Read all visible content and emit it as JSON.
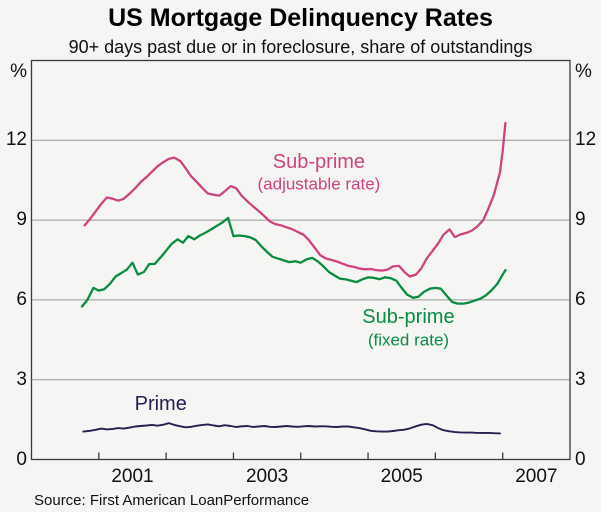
{
  "title": "US Mortgage Delinquency Rates",
  "subtitle": "90+ days past due or in foreclosure, share of outstandings",
  "source": "Source: First American LoanPerformance",
  "y_axis": {
    "unit": "%",
    "ticks": [
      0,
      3,
      6,
      9,
      12
    ],
    "min": 0,
    "max": 15
  },
  "x_axis": {
    "tick_years": [
      2001,
      2002,
      2003,
      2004,
      2005,
      2006,
      2007
    ],
    "label_years": [
      2001,
      2003,
      2005,
      2007
    ],
    "range": [
      2000,
      2008
    ]
  },
  "colors": {
    "background": "#f5f5f3",
    "frame": "#3a3a3a",
    "gridline": "#9a9a9a",
    "subprime_arm": "#ce4380",
    "subprime_fixed": "#0a8c41",
    "prime": "#222150",
    "text": "#111111"
  },
  "chart_data": {
    "type": "line",
    "title": "US Mortgage Delinquency Rates",
    "subtitle": "90+ days past due or in foreclosure, share of outstandings",
    "xlabel": "",
    "ylabel": "%",
    "xlim": [
      2000,
      2008
    ],
    "ylim": [
      0,
      15
    ],
    "grid": "horizontal",
    "legend_position": "inline-annotations",
    "series": [
      {
        "name": "Sub-prime (adjustable rate)",
        "color": "#ce4380",
        "label": {
          "lines": [
            "Sub-prime",
            "(adjustable rate)"
          ],
          "x": 2004.27,
          "y": [
            11.2,
            10.36
          ],
          "font_sizes": [
            20,
            17
          ]
        },
        "points": [
          [
            2000.79,
            8.8
          ],
          [
            2000.87,
            9.05
          ],
          [
            2000.96,
            9.35
          ],
          [
            2001.04,
            9.62
          ],
          [
            2001.12,
            9.85
          ],
          [
            2001.21,
            9.8
          ],
          [
            2001.29,
            9.73
          ],
          [
            2001.37,
            9.8
          ],
          [
            2001.46,
            10.0
          ],
          [
            2001.54,
            10.2
          ],
          [
            2001.62,
            10.42
          ],
          [
            2001.71,
            10.62
          ],
          [
            2001.79,
            10.82
          ],
          [
            2001.87,
            11.02
          ],
          [
            2001.96,
            11.18
          ],
          [
            2002.04,
            11.3
          ],
          [
            2002.12,
            11.35
          ],
          [
            2002.21,
            11.22
          ],
          [
            2002.29,
            10.95
          ],
          [
            2002.37,
            10.65
          ],
          [
            2002.46,
            10.42
          ],
          [
            2002.54,
            10.2
          ],
          [
            2002.62,
            10.0
          ],
          [
            2002.71,
            9.95
          ],
          [
            2002.79,
            9.92
          ],
          [
            2002.87,
            10.08
          ],
          [
            2002.96,
            10.28
          ],
          [
            2003.04,
            10.2
          ],
          [
            2003.12,
            9.92
          ],
          [
            2003.21,
            9.7
          ],
          [
            2003.29,
            9.52
          ],
          [
            2003.37,
            9.35
          ],
          [
            2003.46,
            9.15
          ],
          [
            2003.54,
            8.95
          ],
          [
            2003.62,
            8.85
          ],
          [
            2003.71,
            8.8
          ],
          [
            2003.79,
            8.73
          ],
          [
            2003.87,
            8.66
          ],
          [
            2003.96,
            8.55
          ],
          [
            2004.04,
            8.45
          ],
          [
            2004.12,
            8.25
          ],
          [
            2004.21,
            7.95
          ],
          [
            2004.29,
            7.68
          ],
          [
            2004.37,
            7.56
          ],
          [
            2004.46,
            7.5
          ],
          [
            2004.54,
            7.44
          ],
          [
            2004.62,
            7.36
          ],
          [
            2004.71,
            7.28
          ],
          [
            2004.79,
            7.24
          ],
          [
            2004.87,
            7.18
          ],
          [
            2004.96,
            7.15
          ],
          [
            2005.04,
            7.16
          ],
          [
            2005.12,
            7.12
          ],
          [
            2005.21,
            7.1
          ],
          [
            2005.29,
            7.14
          ],
          [
            2005.37,
            7.26
          ],
          [
            2005.46,
            7.28
          ],
          [
            2005.54,
            7.05
          ],
          [
            2005.62,
            6.88
          ],
          [
            2005.71,
            6.95
          ],
          [
            2005.79,
            7.18
          ],
          [
            2005.87,
            7.55
          ],
          [
            2005.96,
            7.85
          ],
          [
            2006.04,
            8.12
          ],
          [
            2006.12,
            8.45
          ],
          [
            2006.21,
            8.65
          ],
          [
            2006.29,
            8.36
          ],
          [
            2006.37,
            8.46
          ],
          [
            2006.46,
            8.52
          ],
          [
            2006.54,
            8.6
          ],
          [
            2006.62,
            8.75
          ],
          [
            2006.71,
            9.0
          ],
          [
            2006.79,
            9.45
          ],
          [
            2006.87,
            9.95
          ],
          [
            2006.96,
            10.8
          ],
          [
            2007.0,
            11.6
          ],
          [
            2007.04,
            12.65
          ]
        ]
      },
      {
        "name": "Sub-prime (fixed rate)",
        "color": "#0a8c41",
        "label": {
          "lines": [
            "Sub-prime",
            "(fixed rate)"
          ],
          "x": 2005.6,
          "y": [
            5.35,
            4.5
          ],
          "font_sizes": [
            20,
            17
          ]
        },
        "points": [
          [
            2000.75,
            5.75
          ],
          [
            2000.83,
            6.0
          ],
          [
            2000.92,
            6.45
          ],
          [
            2001.0,
            6.35
          ],
          [
            2001.08,
            6.4
          ],
          [
            2001.17,
            6.62
          ],
          [
            2001.25,
            6.88
          ],
          [
            2001.33,
            7.0
          ],
          [
            2001.42,
            7.15
          ],
          [
            2001.5,
            7.4
          ],
          [
            2001.58,
            6.95
          ],
          [
            2001.67,
            7.05
          ],
          [
            2001.75,
            7.35
          ],
          [
            2001.83,
            7.35
          ],
          [
            2001.92,
            7.6
          ],
          [
            2002.0,
            7.85
          ],
          [
            2002.08,
            8.1
          ],
          [
            2002.17,
            8.28
          ],
          [
            2002.25,
            8.15
          ],
          [
            2002.33,
            8.4
          ],
          [
            2002.42,
            8.28
          ],
          [
            2002.5,
            8.42
          ],
          [
            2002.58,
            8.52
          ],
          [
            2002.67,
            8.65
          ],
          [
            2002.75,
            8.78
          ],
          [
            2002.83,
            8.9
          ],
          [
            2002.92,
            9.08
          ],
          [
            2003.0,
            8.4
          ],
          [
            2003.08,
            8.42
          ],
          [
            2003.17,
            8.4
          ],
          [
            2003.25,
            8.35
          ],
          [
            2003.33,
            8.25
          ],
          [
            2003.42,
            8.0
          ],
          [
            2003.5,
            7.8
          ],
          [
            2003.58,
            7.62
          ],
          [
            2003.67,
            7.55
          ],
          [
            2003.75,
            7.48
          ],
          [
            2003.83,
            7.42
          ],
          [
            2003.92,
            7.45
          ],
          [
            2004.0,
            7.4
          ],
          [
            2004.08,
            7.52
          ],
          [
            2004.17,
            7.58
          ],
          [
            2004.25,
            7.45
          ],
          [
            2004.33,
            7.28
          ],
          [
            2004.42,
            7.05
          ],
          [
            2004.5,
            6.92
          ],
          [
            2004.58,
            6.8
          ],
          [
            2004.67,
            6.77
          ],
          [
            2004.75,
            6.72
          ],
          [
            2004.83,
            6.67
          ],
          [
            2004.92,
            6.78
          ],
          [
            2005.0,
            6.85
          ],
          [
            2005.08,
            6.83
          ],
          [
            2005.17,
            6.78
          ],
          [
            2005.25,
            6.85
          ],
          [
            2005.33,
            6.82
          ],
          [
            2005.42,
            6.72
          ],
          [
            2005.5,
            6.45
          ],
          [
            2005.58,
            6.2
          ],
          [
            2005.67,
            6.08
          ],
          [
            2005.75,
            6.12
          ],
          [
            2005.83,
            6.3
          ],
          [
            2005.92,
            6.42
          ],
          [
            2006.0,
            6.45
          ],
          [
            2006.08,
            6.42
          ],
          [
            2006.17,
            6.15
          ],
          [
            2006.25,
            5.92
          ],
          [
            2006.33,
            5.86
          ],
          [
            2006.42,
            5.86
          ],
          [
            2006.5,
            5.9
          ],
          [
            2006.58,
            5.97
          ],
          [
            2006.67,
            6.05
          ],
          [
            2006.75,
            6.17
          ],
          [
            2006.83,
            6.35
          ],
          [
            2006.92,
            6.6
          ],
          [
            2007.0,
            6.95
          ],
          [
            2007.04,
            7.12
          ]
        ]
      },
      {
        "name": "Prime",
        "color": "#222150",
        "label": {
          "lines": [
            "Prime"
          ],
          "x": 2001.92,
          "y": [
            2.1
          ],
          "font_sizes": [
            20
          ]
        },
        "points": [
          [
            2000.77,
            1.05
          ],
          [
            2000.87,
            1.08
          ],
          [
            2000.96,
            1.12
          ],
          [
            2001.04,
            1.16
          ],
          [
            2001.12,
            1.13
          ],
          [
            2001.21,
            1.15
          ],
          [
            2001.29,
            1.18
          ],
          [
            2001.37,
            1.16
          ],
          [
            2001.46,
            1.2
          ],
          [
            2001.54,
            1.24
          ],
          [
            2001.62,
            1.26
          ],
          [
            2001.71,
            1.28
          ],
          [
            2001.79,
            1.3
          ],
          [
            2001.87,
            1.27
          ],
          [
            2001.96,
            1.31
          ],
          [
            2002.04,
            1.37
          ],
          [
            2002.12,
            1.3
          ],
          [
            2002.21,
            1.25
          ],
          [
            2002.29,
            1.21
          ],
          [
            2002.37,
            1.23
          ],
          [
            2002.46,
            1.27
          ],
          [
            2002.54,
            1.3
          ],
          [
            2002.62,
            1.32
          ],
          [
            2002.71,
            1.28
          ],
          [
            2002.79,
            1.25
          ],
          [
            2002.87,
            1.29
          ],
          [
            2002.96,
            1.26
          ],
          [
            2003.04,
            1.22
          ],
          [
            2003.12,
            1.25
          ],
          [
            2003.21,
            1.26
          ],
          [
            2003.29,
            1.22
          ],
          [
            2003.37,
            1.24
          ],
          [
            2003.46,
            1.26
          ],
          [
            2003.54,
            1.23
          ],
          [
            2003.62,
            1.22
          ],
          [
            2003.71,
            1.24
          ],
          [
            2003.79,
            1.26
          ],
          [
            2003.87,
            1.24
          ],
          [
            2003.96,
            1.23
          ],
          [
            2004.04,
            1.25
          ],
          [
            2004.12,
            1.26
          ],
          [
            2004.21,
            1.24
          ],
          [
            2004.29,
            1.25
          ],
          [
            2004.37,
            1.25
          ],
          [
            2004.46,
            1.23
          ],
          [
            2004.54,
            1.22
          ],
          [
            2004.62,
            1.24
          ],
          [
            2004.71,
            1.24
          ],
          [
            2004.79,
            1.21
          ],
          [
            2004.87,
            1.18
          ],
          [
            2004.96,
            1.13
          ],
          [
            2005.04,
            1.08
          ],
          [
            2005.12,
            1.06
          ],
          [
            2005.21,
            1.05
          ],
          [
            2005.29,
            1.05
          ],
          [
            2005.37,
            1.07
          ],
          [
            2005.46,
            1.1
          ],
          [
            2005.54,
            1.12
          ],
          [
            2005.62,
            1.17
          ],
          [
            2005.71,
            1.25
          ],
          [
            2005.79,
            1.31
          ],
          [
            2005.87,
            1.34
          ],
          [
            2005.96,
            1.29
          ],
          [
            2006.04,
            1.18
          ],
          [
            2006.12,
            1.1
          ],
          [
            2006.21,
            1.06
          ],
          [
            2006.29,
            1.03
          ],
          [
            2006.37,
            1.02
          ],
          [
            2006.46,
            1.01
          ],
          [
            2006.54,
            1.01
          ],
          [
            2006.62,
            1.0
          ],
          [
            2006.71,
            1.0
          ],
          [
            2006.79,
            1.0
          ],
          [
            2006.87,
            0.99
          ],
          [
            2006.96,
            0.98
          ]
        ]
      }
    ]
  }
}
